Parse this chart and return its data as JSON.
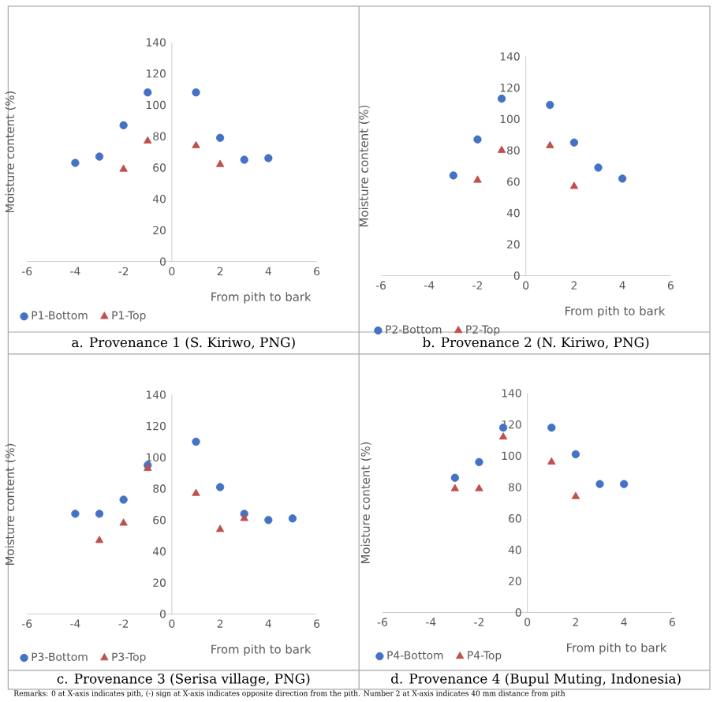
{
  "chart_data": [
    {
      "type": "scatter",
      "title": "a. Provenance 1 (S. Kiriwo, PNG)",
      "xlabel": "From pith to bark",
      "ylabel": "Moisture content (%)",
      "xlim": [
        -6,
        6
      ],
      "ylim": [
        0,
        140
      ],
      "xticks": [
        -6,
        -4,
        -2,
        0,
        2,
        4,
        6
      ],
      "yticks": [
        0,
        20,
        40,
        60,
        80,
        100,
        120,
        140
      ],
      "grid": false,
      "legend": "bottom",
      "series": [
        {
          "name": "P1-Bottom",
          "color": "#4472c4",
          "marker": "circle",
          "x": [
            -4,
            -3,
            -2,
            -1,
            1,
            2,
            3,
            4
          ],
          "values": [
            63,
            67,
            87,
            108,
            108,
            79,
            65,
            66
          ]
        },
        {
          "name": "P1-Top",
          "color": "#c0504d",
          "marker": "triangle",
          "x": [
            -2,
            -1,
            1,
            2
          ],
          "values": [
            59,
            77,
            74,
            62
          ]
        }
      ]
    },
    {
      "type": "scatter",
      "title": "b. Provenance 2 (N. Kiriwo, PNG)",
      "xlabel": "From pith to bark",
      "ylabel": "Moisture content (%)",
      "xlim": [
        -6,
        6
      ],
      "ylim": [
        0,
        140
      ],
      "xticks": [
        -6,
        -4,
        -2,
        0,
        2,
        4,
        6
      ],
      "yticks": [
        0,
        20,
        40,
        60,
        80,
        100,
        120,
        140
      ],
      "grid": false,
      "legend": "bottom",
      "series": [
        {
          "name": "P2-Bottom",
          "color": "#4472c4",
          "marker": "circle",
          "x": [
            -3,
            -2,
            -1,
            1,
            2,
            3,
            4
          ],
          "values": [
            64,
            87,
            113,
            109,
            85,
            69,
            62
          ]
        },
        {
          "name": "P2-Top",
          "color": "#c0504d",
          "marker": "triangle",
          "x": [
            -2,
            -1,
            1,
            2
          ],
          "values": [
            61,
            80,
            83,
            57
          ]
        }
      ]
    },
    {
      "type": "scatter",
      "title": "c. Provenance 3 (Serisa village, PNG)",
      "xlabel": "From pith to bark",
      "ylabel": "Moisture content (%)",
      "xlim": [
        -6,
        6
      ],
      "ylim": [
        0,
        140
      ],
      "xticks": [
        -6,
        -4,
        -2,
        0,
        2,
        4,
        6
      ],
      "yticks": [
        0,
        20,
        40,
        60,
        80,
        100,
        120,
        140
      ],
      "grid": false,
      "legend": "bottom",
      "series": [
        {
          "name": "P3-Bottom",
          "color": "#4472c4",
          "marker": "circle",
          "x": [
            -4,
            -3,
            -2,
            -1,
            1,
            2,
            3,
            4,
            5
          ],
          "values": [
            64,
            64,
            73,
            95,
            110,
            81,
            64,
            60,
            61
          ]
        },
        {
          "name": "P3-Top",
          "color": "#c0504d",
          "marker": "triangle",
          "x": [
            -3,
            -2,
            -1,
            1,
            2,
            3
          ],
          "values": [
            47,
            58,
            93,
            77,
            54,
            61
          ]
        }
      ]
    },
    {
      "type": "scatter",
      "title": "d. Provenance 4 (Bupul Muting, Indonesia)",
      "xlabel": "From pith to bark",
      "ylabel": "Moisture content (%)",
      "xlim": [
        -6,
        6
      ],
      "ylim": [
        0,
        140
      ],
      "xticks": [
        -6,
        -4,
        -2,
        0,
        2,
        4,
        6
      ],
      "yticks": [
        0,
        20,
        40,
        60,
        80,
        100,
        120,
        140
      ],
      "grid": false,
      "legend": "bottom",
      "annotations": [
        "Remarks: 0 at X-axis indicates pith, (-) sign at X-axis indicates opposite direction from the pith. Number 2 at X-axis indicates 40 mm distance from pith"
      ],
      "series": [
        {
          "name": "P4-Bottom",
          "color": "#4472c4",
          "marker": "circle",
          "x": [
            -3,
            -2,
            -1,
            1,
            2,
            3,
            4
          ],
          "values": [
            86,
            96,
            118,
            118,
            101,
            82,
            82
          ]
        },
        {
          "name": "P4-Top",
          "color": "#c0504d",
          "marker": "triangle",
          "x": [
            -3,
            -2,
            -1,
            1,
            2
          ],
          "values": [
            79,
            79,
            112,
            96,
            74
          ]
        }
      ]
    }
  ]
}
